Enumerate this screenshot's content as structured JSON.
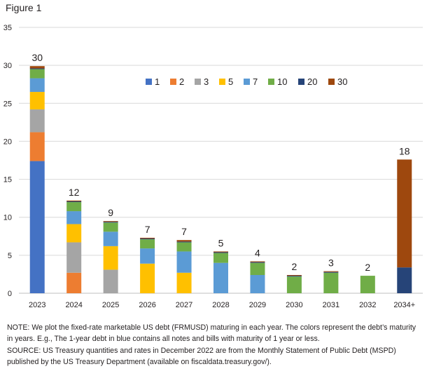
{
  "figure_label": "Figure 1",
  "chart_data": {
    "type": "bar",
    "stacked": true,
    "title": "",
    "xlabel": "",
    "ylabel": "",
    "ylim": [
      0,
      35
    ],
    "yticks": [
      0,
      5,
      10,
      15,
      20,
      25,
      30,
      35
    ],
    "grid": true,
    "legend_position": "top-center",
    "categories": [
      "2023",
      "2024",
      "2025",
      "2026",
      "2027",
      "2028",
      "2029",
      "2030",
      "2031",
      "2032",
      "2034+"
    ],
    "totals": [
      "30",
      "12",
      "9",
      "7",
      "7",
      "5",
      "4",
      "2",
      "3",
      "2",
      "18"
    ],
    "series": [
      {
        "name": "1",
        "color": "#4472c4",
        "values": [
          17.4,
          0,
          0,
          0,
          0,
          0,
          0,
          0,
          0,
          0,
          0
        ]
      },
      {
        "name": "2",
        "color": "#ed7d31",
        "values": [
          3.8,
          2.7,
          0,
          0,
          0,
          0,
          0,
          0,
          0,
          0,
          0
        ]
      },
      {
        "name": "3",
        "color": "#a5a5a5",
        "values": [
          3.0,
          4.0,
          3.1,
          0,
          0,
          0,
          0,
          0,
          0,
          0,
          0
        ]
      },
      {
        "name": "5",
        "color": "#ffc000",
        "values": [
          2.3,
          2.4,
          3.1,
          3.9,
          2.7,
          0,
          0,
          0,
          0,
          0,
          0
        ]
      },
      {
        "name": "7",
        "color": "#5b9bd5",
        "values": [
          1.8,
          1.7,
          1.9,
          2.0,
          2.8,
          4.0,
          2.4,
          0,
          0,
          0,
          0
        ]
      },
      {
        "name": "10",
        "color": "#70ad47",
        "values": [
          1.2,
          1.2,
          1.2,
          1.2,
          1.2,
          1.3,
          1.6,
          2.2,
          2.7,
          2.3,
          0
        ]
      },
      {
        "name": "20",
        "color": "#264478",
        "values": [
          0.1,
          0.1,
          0.1,
          0.1,
          0.1,
          0.1,
          0.1,
          0.1,
          0.1,
          0,
          3.4
        ]
      },
      {
        "name": "30",
        "color": "#9e480e",
        "values": [
          0.3,
          0.1,
          0.1,
          0.1,
          0.2,
          0.1,
          0.1,
          0.1,
          0.1,
          0,
          14.2
        ]
      }
    ]
  },
  "notes": {
    "note": "NOTE:  We plot the fixed-rate marketable US debt (FRMUSD) maturing in each year. The colors represent the debt’s maturity in years. E.g., The 1-year debt in blue contains all notes and bills with maturity of 1 year or less.",
    "source": "SOURCE: US Treasury quantities and rates in December 2022 are from the Monthly Statement of Public Debt (MSPD) published by the US Treasury Department (available on fiscaldata.treasury.gov/)."
  }
}
